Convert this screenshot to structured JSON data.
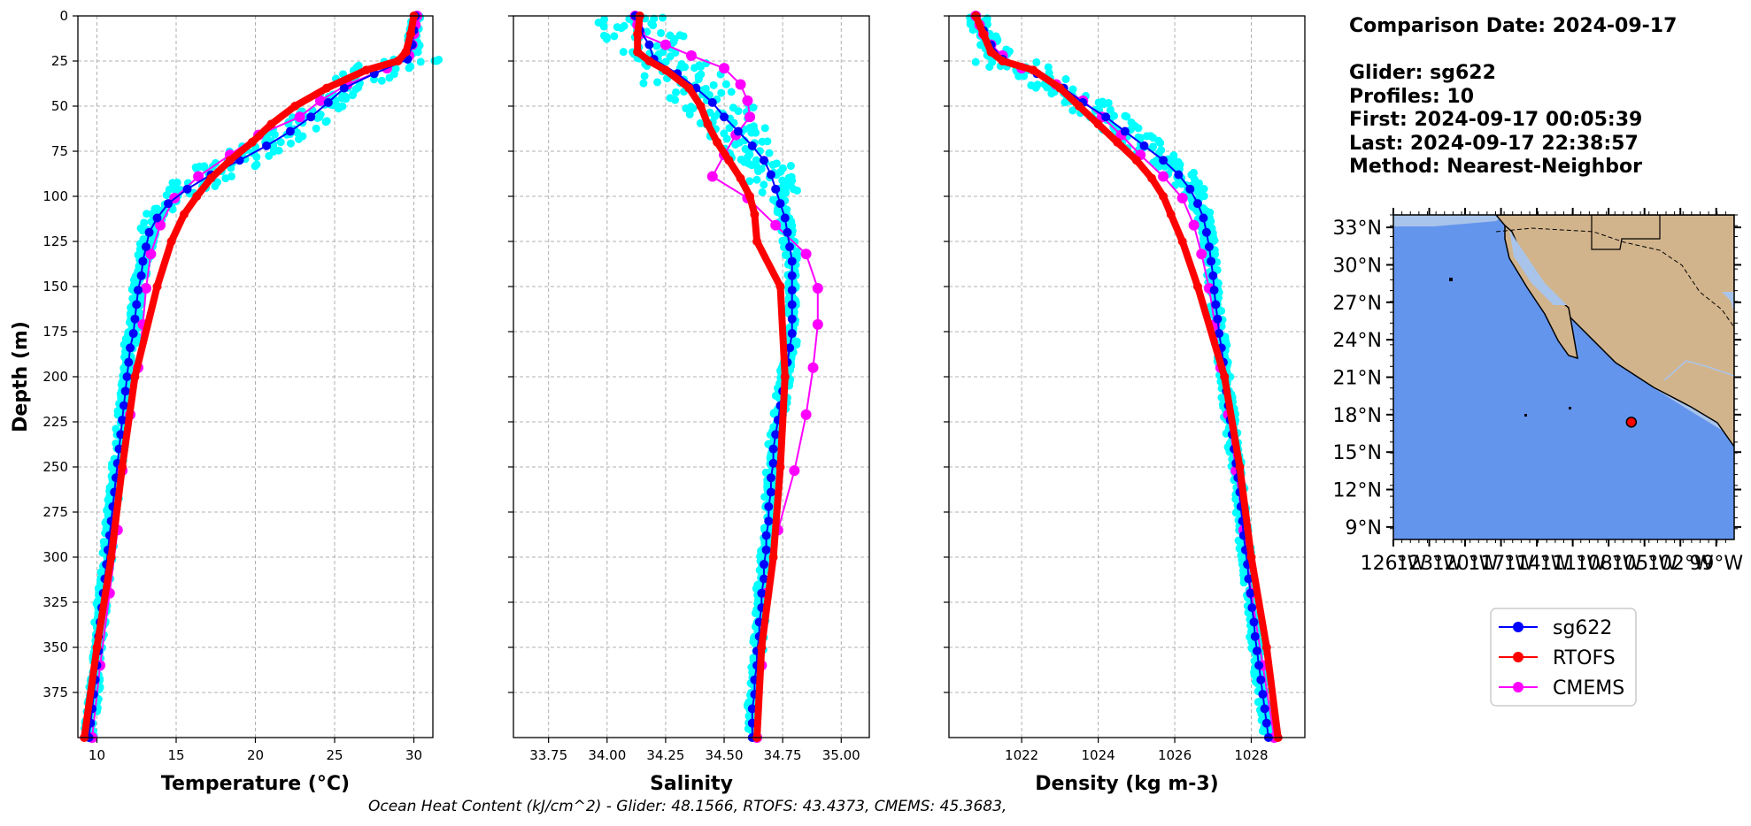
{
  "info": {
    "comparison_date": "Comparison Date: 2024-09-17",
    "glider": "Glider: sg622",
    "profiles": "Profiles: 10",
    "first": "First: 2024-09-17 00:05:39",
    "last": "Last: 2024-09-17 22:38:57",
    "method": "Method: Nearest-Neighbor"
  },
  "footer": "Ocean Heat Content (kJ/cm^2) - Glider: 48.1566,  RTOFS: 43.4373,  CMEMS: 45.3683,",
  "colors": {
    "glider": "#0000ff",
    "rtofs": "#ff0000",
    "cmems": "#ff00ff",
    "raw": "#00ffff",
    "ocean": "#6495ed",
    "shelf": "#a9c4ea",
    "land": "#d2b48c"
  },
  "legend": [
    {
      "label": "sg622",
      "color": "#0000ff"
    },
    {
      "label": "RTOFS",
      "color": "#ff0000"
    },
    {
      "label": "CMEMS",
      "color": "#ff00ff"
    }
  ],
  "map": {
    "lat_labels": [
      "33°N",
      "30°N",
      "27°N",
      "24°N",
      "21°N",
      "18°N",
      "15°N",
      "12°N",
      "9°N"
    ],
    "lat_values": [
      33,
      30,
      27,
      24,
      21,
      18,
      15,
      12,
      9
    ],
    "lon_values": [
      -126,
      -123,
      -120,
      -117,
      -114,
      -111,
      -108,
      -105,
      -102,
      -99
    ],
    "lon_labels": [
      "126°W",
      "123°W",
      "120°W",
      "117°W",
      "114°W",
      "111°W",
      "108°W",
      "105°W",
      "102°W",
      "99°W"
    ],
    "lon_range": [
      -126,
      -97.5
    ],
    "lat_range": [
      8,
      34
    ],
    "glider_position": {
      "lon": -106.1,
      "lat": 17.4
    }
  },
  "chart_data": [
    {
      "type": "line",
      "xlabel": "Temperature (°C)",
      "ylabel": "Depth (m)",
      "xlim": [
        8.8,
        31.2
      ],
      "ylim": [
        400,
        0
      ],
      "xticks": [
        10,
        15,
        20,
        25,
        30
      ],
      "yticks": [
        0,
        25,
        50,
        75,
        100,
        125,
        150,
        175,
        200,
        225,
        250,
        275,
        300,
        325,
        350,
        375
      ],
      "series": [
        {
          "name": "sg622",
          "depth": [
            0,
            8,
            16,
            24,
            32,
            40,
            48,
            56,
            64,
            72,
            80,
            88,
            96,
            104,
            112,
            120,
            128,
            136,
            144,
            152,
            160,
            168,
            176,
            184,
            192,
            200,
            208,
            216,
            224,
            232,
            240,
            248,
            256,
            264,
            272,
            280,
            288,
            296,
            304,
            312,
            320,
            328,
            336,
            344,
            352,
            360,
            368,
            376,
            384,
            392,
            400
          ],
          "values": [
            30.1,
            30.0,
            29.9,
            29.6,
            27.5,
            25.6,
            24.6,
            23.5,
            22.2,
            20.7,
            19.0,
            17.2,
            15.7,
            14.5,
            13.8,
            13.3,
            13.1,
            12.9,
            12.8,
            12.6,
            12.5,
            12.4,
            12.3,
            12.1,
            12.0,
            11.9,
            11.8,
            11.7,
            11.6,
            11.5,
            11.4,
            11.3,
            11.2,
            11.1,
            11.0,
            10.9,
            10.8,
            10.7,
            10.6,
            10.5,
            10.4,
            10.3,
            10.2,
            10.1,
            10.1,
            10.0,
            9.9,
            9.8,
            9.7,
            9.6,
            9.5
          ]
        },
        {
          "name": "RTOFS",
          "depth": [
            0,
            10,
            20,
            25,
            30,
            40,
            50,
            60,
            70,
            80,
            90,
            100,
            110,
            125,
            150,
            200,
            250,
            300,
            350,
            400
          ],
          "values": [
            30.0,
            29.8,
            29.5,
            29.0,
            27.0,
            24.5,
            22.5,
            21.0,
            19.8,
            18.4,
            17.2,
            16.3,
            15.5,
            14.7,
            13.8,
            12.4,
            11.6,
            10.9,
            10.0,
            9.2
          ]
        },
        {
          "name": "CMEMS",
          "depth": [
            0,
            5,
            10,
            16,
            22,
            29,
            38,
            47,
            56,
            66,
            77,
            89,
            101,
            116,
            132,
            151,
            171,
            195,
            221,
            252,
            285,
            320,
            360,
            400
          ],
          "values": [
            30.2,
            30.1,
            30.0,
            29.9,
            29.7,
            28.3,
            25.8,
            24.1,
            22.8,
            20.2,
            18.4,
            16.4,
            14.9,
            14.0,
            13.4,
            13.1,
            12.9,
            12.6,
            12.1,
            11.6,
            11.3,
            10.8,
            10.2,
            9.7
          ]
        }
      ]
    },
    {
      "type": "line",
      "xlabel": "Salinity",
      "ylabel": "",
      "xlim": [
        33.6,
        35.12
      ],
      "ylim": [
        400,
        0
      ],
      "xticks": [
        33.75,
        34.0,
        34.25,
        34.5,
        34.75,
        35.0
      ],
      "xticklabels": [
        "33.75",
        "34.00",
        "34.25",
        "34.50",
        "34.75",
        "35.00"
      ],
      "series": [
        {
          "name": "sg622",
          "depth": [
            0,
            8,
            16,
            24,
            32,
            40,
            48,
            56,
            64,
            72,
            80,
            88,
            96,
            104,
            112,
            120,
            128,
            136,
            144,
            152,
            160,
            168,
            176,
            184,
            192,
            200,
            208,
            216,
            224,
            232,
            240,
            248,
            256,
            264,
            272,
            280,
            288,
            296,
            304,
            312,
            320,
            328,
            336,
            344,
            352,
            360,
            368,
            376,
            384,
            392,
            400
          ],
          "values": [
            34.12,
            34.14,
            34.18,
            34.2,
            34.3,
            34.38,
            34.45,
            34.5,
            34.56,
            34.62,
            34.67,
            34.7,
            34.72,
            34.74,
            34.76,
            34.77,
            34.78,
            34.79,
            34.79,
            34.79,
            34.79,
            34.79,
            34.79,
            34.78,
            34.77,
            34.76,
            34.75,
            34.74,
            34.73,
            34.72,
            34.71,
            34.71,
            34.7,
            34.7,
            34.69,
            34.69,
            34.68,
            34.68,
            34.67,
            34.67,
            34.66,
            34.66,
            34.65,
            34.65,
            34.64,
            34.64,
            34.63,
            34.63,
            34.62,
            34.62,
            34.62
          ]
        },
        {
          "name": "RTOFS",
          "depth": [
            0,
            10,
            20,
            25,
            30,
            40,
            50,
            60,
            70,
            80,
            90,
            100,
            110,
            125,
            150,
            200,
            250,
            300,
            350,
            400
          ],
          "values": [
            34.14,
            34.13,
            34.13,
            34.18,
            34.25,
            34.35,
            34.4,
            34.43,
            34.47,
            34.52,
            34.57,
            34.61,
            34.63,
            34.64,
            34.74,
            34.76,
            34.74,
            34.71,
            34.66,
            34.64
          ]
        },
        {
          "name": "CMEMS",
          "depth": [
            0,
            5,
            10,
            16,
            22,
            29,
            38,
            47,
            56,
            66,
            77,
            89,
            101,
            116,
            132,
            151,
            171,
            195,
            221,
            252,
            285,
            320,
            360,
            400
          ],
          "values": [
            34.12,
            34.13,
            34.14,
            34.25,
            34.36,
            34.5,
            34.57,
            34.6,
            34.61,
            34.55,
            34.5,
            34.45,
            34.6,
            34.72,
            34.85,
            34.9,
            34.9,
            34.88,
            34.85,
            34.8,
            34.73,
            34.68,
            34.66,
            34.64
          ]
        }
      ]
    },
    {
      "type": "line",
      "xlabel": "Density (kg m-3)",
      "ylabel": "",
      "xlim": [
        1020.1,
        1029.4
      ],
      "ylim": [
        400,
        0
      ],
      "xticks": [
        1022,
        1024,
        1026,
        1028
      ],
      "series": [
        {
          "name": "sg622",
          "depth": [
            0,
            8,
            16,
            24,
            32,
            40,
            48,
            56,
            64,
            72,
            80,
            88,
            96,
            104,
            112,
            120,
            128,
            136,
            144,
            152,
            160,
            168,
            176,
            184,
            192,
            200,
            208,
            216,
            224,
            232,
            240,
            248,
            256,
            264,
            272,
            280,
            288,
            296,
            304,
            312,
            320,
            328,
            336,
            344,
            352,
            360,
            368,
            376,
            384,
            392,
            400
          ],
          "values": [
            1020.8,
            1021.0,
            1021.2,
            1021.5,
            1022.4,
            1023.1,
            1023.6,
            1024.2,
            1024.7,
            1025.2,
            1025.7,
            1026.1,
            1026.4,
            1026.6,
            1026.75,
            1026.83,
            1026.9,
            1026.95,
            1027.0,
            1027.03,
            1027.07,
            1027.12,
            1027.16,
            1027.22,
            1027.27,
            1027.3,
            1027.35,
            1027.4,
            1027.45,
            1027.5,
            1027.55,
            1027.6,
            1027.65,
            1027.7,
            1027.73,
            1027.77,
            1027.8,
            1027.85,
            1027.9,
            1027.93,
            1027.98,
            1028.02,
            1028.07,
            1028.1,
            1028.15,
            1028.2,
            1028.25,
            1028.3,
            1028.35,
            1028.4,
            1028.45
          ]
        },
        {
          "name": "RTOFS",
          "depth": [
            0,
            10,
            20,
            25,
            30,
            40,
            50,
            60,
            70,
            80,
            90,
            100,
            110,
            125,
            150,
            200,
            250,
            300,
            350,
            400
          ],
          "values": [
            1020.8,
            1021.0,
            1021.2,
            1021.5,
            1022.3,
            1023.0,
            1023.5,
            1024.0,
            1024.5,
            1025.0,
            1025.4,
            1025.7,
            1025.9,
            1026.2,
            1026.6,
            1027.3,
            1027.7,
            1028.0,
            1028.4,
            1028.7
          ]
        },
        {
          "name": "CMEMS",
          "depth": [
            0,
            5,
            10,
            16,
            22,
            29,
            38,
            47,
            56,
            66,
            77,
            89,
            101,
            116,
            132,
            151,
            171,
            195,
            221,
            252,
            285,
            320,
            360,
            400
          ],
          "values": [
            1020.8,
            1020.9,
            1021.0,
            1021.2,
            1021.5,
            1022.0,
            1022.9,
            1023.6,
            1024.1,
            1024.6,
            1025.1,
            1025.7,
            1026.2,
            1026.5,
            1026.7,
            1026.9,
            1027.05,
            1027.2,
            1027.4,
            1027.6,
            1027.8,
            1028.0,
            1028.3,
            1028.6
          ]
        }
      ]
    }
  ]
}
